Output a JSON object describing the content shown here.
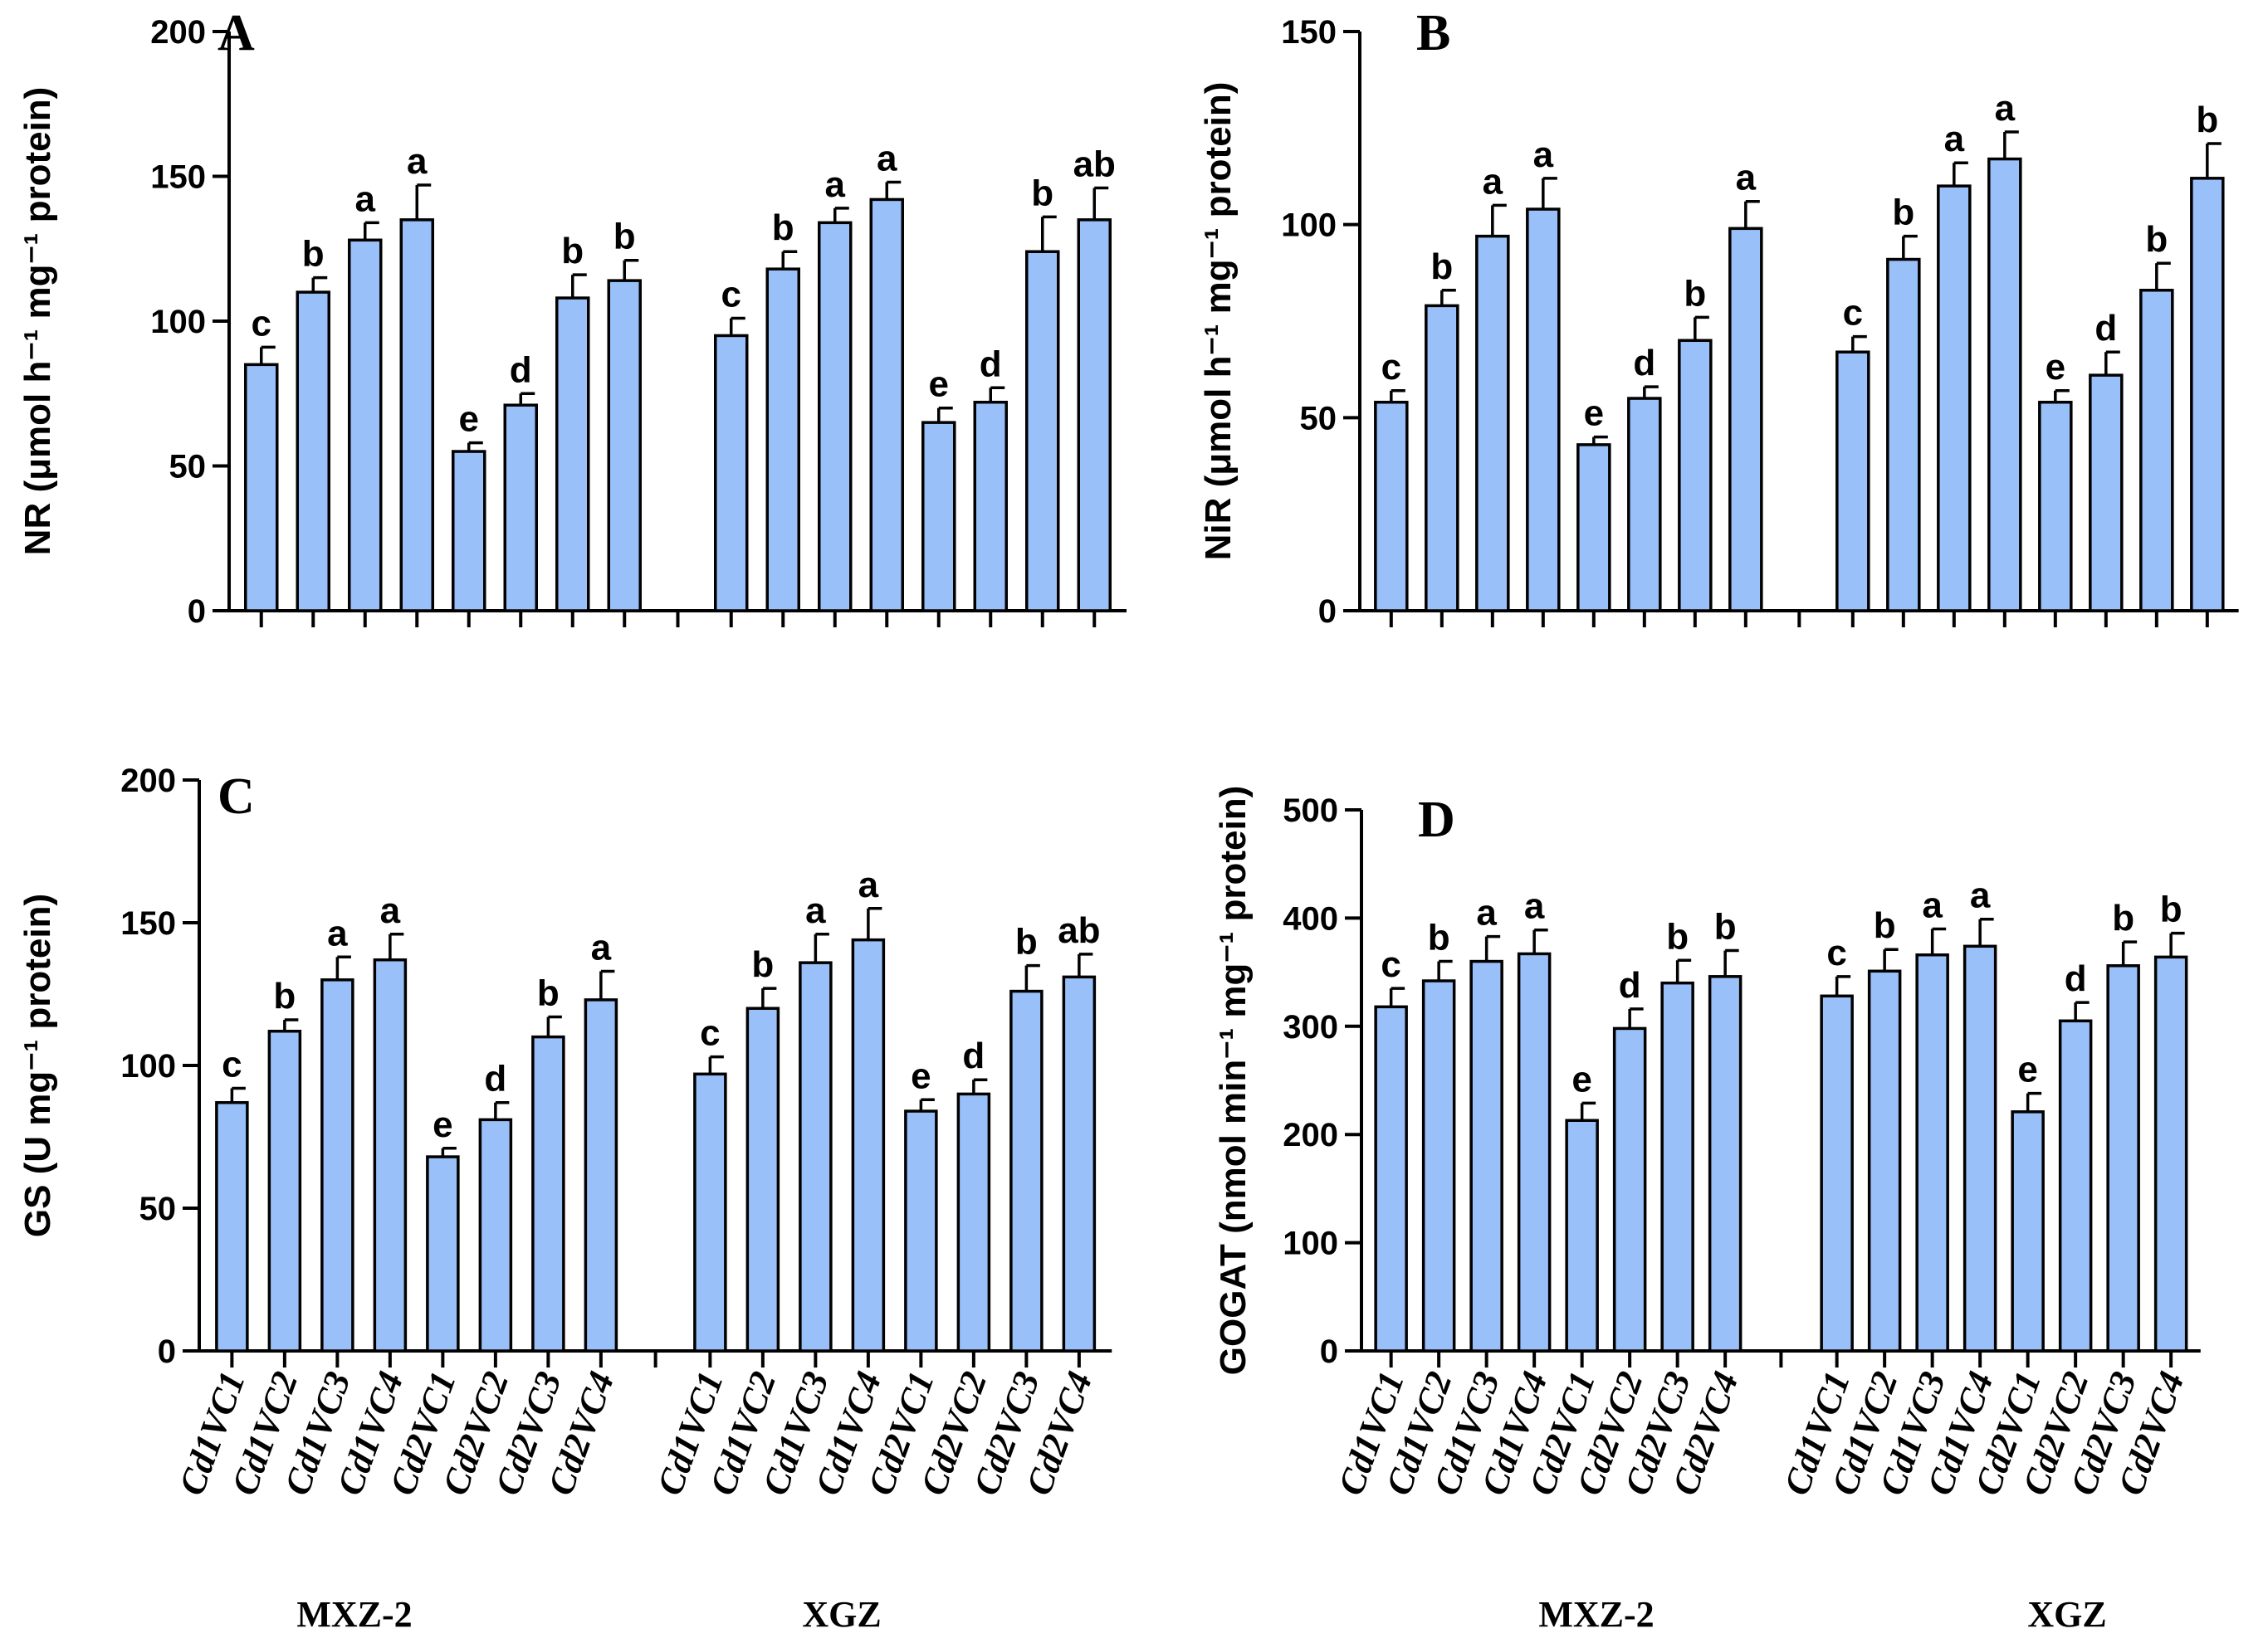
{
  "figure": {
    "bar_color": "#99c0f8",
    "groups": [
      "MXZ-2",
      "XGZ"
    ]
  },
  "chart_data": [
    {
      "type": "bar",
      "panel": "A",
      "ylabel": "NR (μmol h⁻¹ mg⁻¹ protein)",
      "ylim": [
        0,
        200
      ],
      "yticks": [
        0,
        50,
        100,
        150,
        200
      ],
      "categories": [
        "Cd1VC1",
        "Cd1VC2",
        "Cd1VC3",
        "Cd1VC4",
        "Cd2VC1",
        "Cd2VC2",
        "Cd2VC3",
        "Cd2VC4",
        "Cd1VC1",
        "Cd1VC2",
        "Cd1VC3",
        "Cd1VC4",
        "Cd2VC1",
        "Cd2VC2",
        "Cd2VC3",
        "Cd2VC4"
      ],
      "values": [
        85,
        110,
        128,
        135,
        55,
        71,
        108,
        114,
        95,
        118,
        134,
        142,
        65,
        72,
        124,
        135
      ],
      "errors": [
        6,
        5,
        6,
        12,
        3,
        4,
        8,
        7,
        6,
        6,
        5,
        6,
        5,
        5,
        12,
        11
      ],
      "letters": [
        "c",
        "b",
        "a",
        "a",
        "e",
        "d",
        "b",
        "b",
        "c",
        "b",
        "a",
        "a",
        "e",
        "d",
        "b",
        "ab"
      ]
    },
    {
      "type": "bar",
      "panel": "B",
      "ylabel": "NiR (μmol h⁻¹ mg⁻¹ protein)",
      "ylim": [
        0,
        150
      ],
      "yticks": [
        0,
        50,
        100,
        150
      ],
      "categories": [
        "Cd1VC1",
        "Cd1VC2",
        "Cd1VC3",
        "Cd1VC4",
        "Cd2VC1",
        "Cd2VC2",
        "Cd2VC3",
        "Cd2VC4",
        "Cd1VC1",
        "Cd1VC2",
        "Cd1VC3",
        "Cd1VC4",
        "Cd2VC1",
        "Cd2VC2",
        "Cd2VC3",
        "Cd2VC4"
      ],
      "values": [
        54,
        79,
        97,
        104,
        43,
        55,
        70,
        99,
        67,
        91,
        110,
        117,
        54,
        61,
        83,
        112
      ],
      "errors": [
        3,
        4,
        8,
        8,
        2,
        3,
        6,
        7,
        4,
        6,
        6,
        7,
        3,
        6,
        7,
        9
      ],
      "letters": [
        "c",
        "b",
        "a",
        "a",
        "e",
        "d",
        "b",
        "a",
        "c",
        "b",
        "a",
        "a",
        "e",
        "d",
        "b",
        "b"
      ]
    },
    {
      "type": "bar",
      "panel": "C",
      "ylabel": "GS (U mg⁻¹ protein)",
      "ylim": [
        0,
        200
      ],
      "yticks": [
        0,
        50,
        100,
        150,
        200
      ],
      "categories": [
        "Cd1VC1",
        "Cd1VC2",
        "Cd1VC3",
        "Cd1VC4",
        "Cd2VC1",
        "Cd2VC2",
        "Cd2VC3",
        "Cd2VC4",
        "Cd1VC1",
        "Cd1VC2",
        "Cd1VC3",
        "Cd1VC4",
        "Cd2VC1",
        "Cd2VC2",
        "Cd2VC3",
        "Cd2VC4"
      ],
      "values": [
        87,
        112,
        130,
        137,
        68,
        81,
        110,
        123,
        97,
        120,
        136,
        144,
        84,
        90,
        126,
        131
      ],
      "errors": [
        5,
        4,
        8,
        9,
        3,
        6,
        7,
        10,
        6,
        7,
        10,
        11,
        4,
        5,
        9,
        8
      ],
      "letters": [
        "c",
        "b",
        "a",
        "a",
        "e",
        "d",
        "b",
        "a",
        "c",
        "b",
        "a",
        "a",
        "e",
        "d",
        "b",
        "ab"
      ]
    },
    {
      "type": "bar",
      "panel": "D",
      "ylabel": "GOGAT (nmol min⁻¹ mg⁻¹ protein)",
      "ylim": [
        0,
        500
      ],
      "yticks": [
        0,
        100,
        200,
        300,
        400,
        500
      ],
      "categories": [
        "Cd1VC1",
        "Cd1VC2",
        "Cd1VC3",
        "Cd1VC4",
        "Cd2VC1",
        "Cd2VC2",
        "Cd2VC3",
        "Cd2VC4",
        "Cd1VC1",
        "Cd1VC2",
        "Cd1VC3",
        "Cd1VC4",
        "Cd2VC1",
        "Cd2VC2",
        "Cd2VC3",
        "Cd2VC4"
      ],
      "values": [
        318,
        342,
        360,
        367,
        213,
        298,
        340,
        346,
        328,
        351,
        366,
        374,
        221,
        305,
        356,
        364
      ],
      "errors": [
        17,
        18,
        23,
        22,
        16,
        18,
        21,
        24,
        18,
        20,
        24,
        25,
        17,
        17,
        22,
        22
      ],
      "letters": [
        "c",
        "b",
        "a",
        "a",
        "e",
        "d",
        "b",
        "b",
        "c",
        "b",
        "a",
        "a",
        "e",
        "d",
        "b",
        "b"
      ]
    }
  ]
}
